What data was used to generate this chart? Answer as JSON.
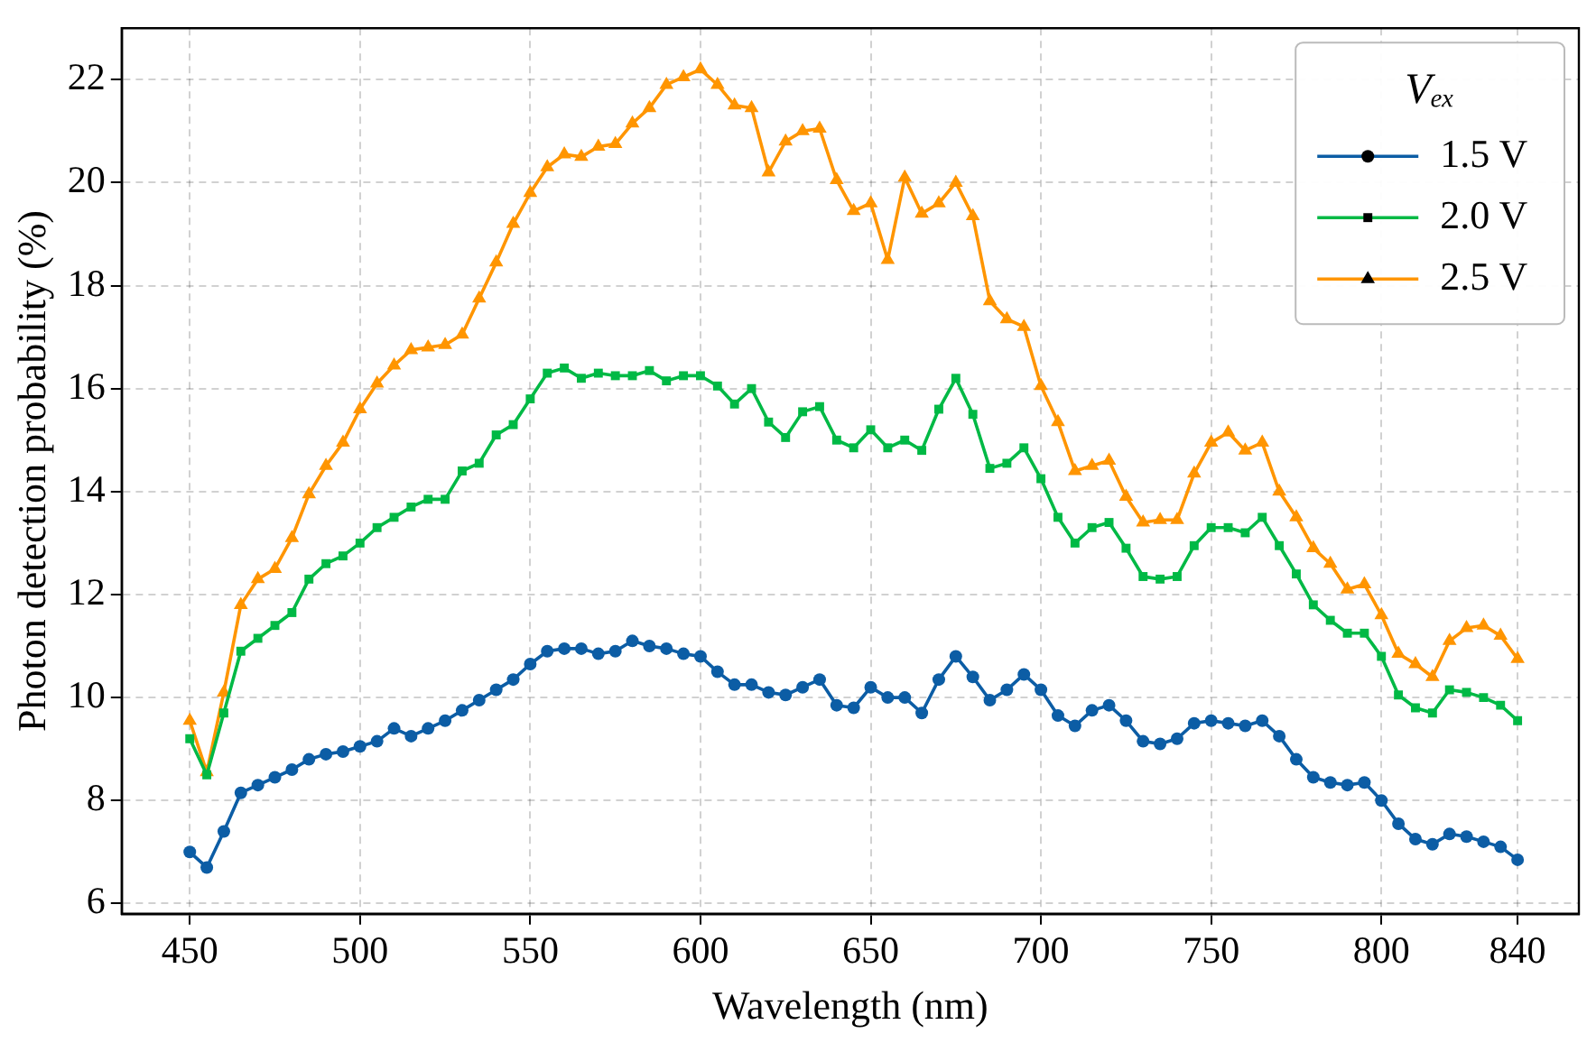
{
  "chart_data": {
    "type": "line",
    "xlabel": "Wavelength (nm)",
    "ylabel": "Photon detection probability (%)",
    "legend_title": "Vₑₓ",
    "legend": "top right",
    "grid": true,
    "line_style": "solid",
    "x": [
      450,
      455,
      460,
      465,
      470,
      475,
      480,
      485,
      490,
      495,
      500,
      505,
      510,
      515,
      520,
      525,
      530,
      535,
      540,
      545,
      550,
      555,
      560,
      565,
      570,
      575,
      580,
      585,
      590,
      595,
      600,
      605,
      610,
      615,
      620,
      625,
      630,
      635,
      640,
      645,
      650,
      655,
      660,
      665,
      670,
      675,
      680,
      685,
      690,
      695,
      700,
      705,
      710,
      715,
      720,
      725,
      730,
      735,
      740,
      745,
      750,
      755,
      760,
      765,
      770,
      775,
      780,
      785,
      790,
      795,
      800,
      805,
      810,
      815,
      820,
      825,
      830,
      835,
      840
    ],
    "xlim": [
      430,
      858
    ],
    "xticks": [
      450,
      500,
      550,
      600,
      650,
      700,
      750,
      800,
      840
    ],
    "ylim": [
      5.8,
      23
    ],
    "yticks": [
      6,
      8,
      10,
      12,
      14,
      16,
      18,
      20,
      22
    ],
    "series": [
      {
        "name": "1.5 V",
        "color": "#0c5da5",
        "marker": "circle",
        "values": [
          7.0,
          6.7,
          7.4,
          8.15,
          8.3,
          8.45,
          8.6,
          8.8,
          8.9,
          8.95,
          9.05,
          9.15,
          9.4,
          9.25,
          9.4,
          9.55,
          9.75,
          9.95,
          10.15,
          10.35,
          10.65,
          10.9,
          10.95,
          10.95,
          10.85,
          10.9,
          11.1,
          11.0,
          10.95,
          10.85,
          10.8,
          10.5,
          10.25,
          10.25,
          10.1,
          10.05,
          10.2,
          10.35,
          9.85,
          9.8,
          10.2,
          10.0,
          10.0,
          9.7,
          10.35,
          10.8,
          10.4,
          9.95,
          10.15,
          10.45,
          10.15,
          9.65,
          9.45,
          9.75,
          9.85,
          9.55,
          9.15,
          9.1,
          9.2,
          9.5,
          9.55,
          9.5,
          9.45,
          9.55,
          9.25,
          8.8,
          8.45,
          8.35,
          8.3,
          8.35,
          8.0,
          7.55,
          7.25,
          7.15,
          7.35,
          7.3,
          7.2,
          7.1,
          6.85
        ]
      },
      {
        "name": "2.0 V",
        "color": "#00b945",
        "marker": "square",
        "values": [
          9.2,
          8.5,
          9.7,
          10.9,
          11.15,
          11.4,
          11.65,
          12.3,
          12.6,
          12.75,
          13.0,
          13.3,
          13.5,
          13.7,
          13.85,
          13.85,
          14.4,
          14.55,
          15.1,
          15.3,
          15.8,
          16.3,
          16.4,
          16.2,
          16.3,
          16.25,
          16.25,
          16.35,
          16.15,
          16.25,
          16.25,
          16.05,
          15.7,
          16.0,
          15.35,
          15.05,
          15.55,
          15.65,
          15.0,
          14.85,
          15.2,
          14.85,
          15.0,
          14.8,
          15.6,
          16.2,
          15.5,
          14.45,
          14.55,
          14.85,
          14.25,
          13.5,
          13.0,
          13.3,
          13.4,
          12.9,
          12.35,
          12.3,
          12.35,
          12.95,
          13.3,
          13.3,
          13.2,
          13.5,
          12.95,
          12.4,
          11.8,
          11.5,
          11.25,
          11.25,
          10.8,
          10.05,
          9.8,
          9.7,
          10.15,
          10.1,
          10.0,
          9.85,
          9.55
        ]
      },
      {
        "name": "2.5 V",
        "color": "#ff9500",
        "marker": "triangle",
        "values": [
          9.55,
          8.55,
          10.1,
          11.8,
          12.3,
          12.5,
          13.1,
          13.95,
          14.5,
          14.95,
          15.6,
          16.1,
          16.45,
          16.75,
          16.8,
          16.85,
          17.05,
          17.75,
          18.45,
          19.2,
          19.8,
          20.3,
          20.55,
          20.5,
          20.7,
          20.75,
          21.15,
          21.45,
          21.9,
          22.05,
          22.2,
          21.9,
          21.5,
          21.45,
          20.2,
          20.8,
          21.0,
          21.05,
          20.05,
          19.45,
          19.6,
          18.5,
          20.1,
          19.4,
          19.6,
          20.0,
          19.35,
          17.7,
          17.35,
          17.2,
          16.05,
          15.35,
          14.4,
          14.5,
          14.6,
          13.9,
          13.4,
          13.45,
          13.45,
          14.35,
          14.95,
          15.15,
          14.8,
          14.95,
          14.0,
          13.5,
          12.9,
          12.6,
          12.1,
          12.2,
          11.6,
          10.85,
          10.65,
          10.4,
          11.1,
          11.35,
          11.4,
          11.2,
          10.75
        ]
      }
    ]
  }
}
